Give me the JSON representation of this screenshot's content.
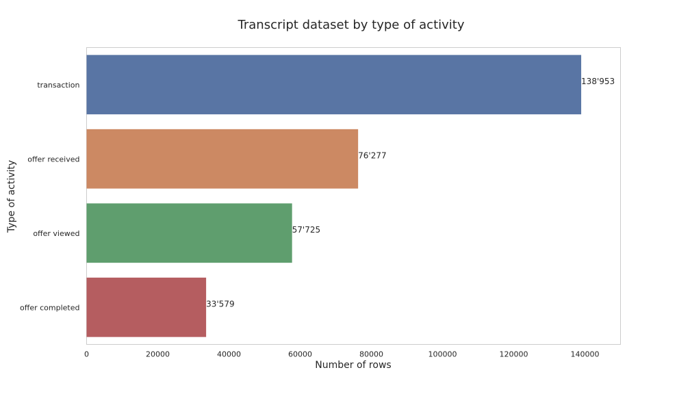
{
  "chart_data": {
    "type": "bar",
    "orientation": "horizontal",
    "title": "Transcript dataset by type of activity",
    "xlabel": "Number of rows",
    "ylabel": "Type of activity",
    "categories": [
      "transaction",
      "offer received",
      "offer viewed",
      "offer completed"
    ],
    "values": [
      138953,
      76277,
      57725,
      33579
    ],
    "value_labels": [
      "138'953",
      "76'277",
      "57'725",
      "33'579"
    ],
    "colors": [
      "#5975a4",
      "#cc8963",
      "#5f9e6e",
      "#b55d60"
    ],
    "xlim": [
      0,
      150000
    ],
    "xticks": [
      0,
      20000,
      40000,
      60000,
      80000,
      100000,
      120000,
      140000
    ],
    "xtick_labels": [
      "0",
      "20000",
      "40000",
      "60000",
      "80000",
      "100000",
      "120000",
      "140000"
    ],
    "grid": false,
    "legend": "none"
  }
}
